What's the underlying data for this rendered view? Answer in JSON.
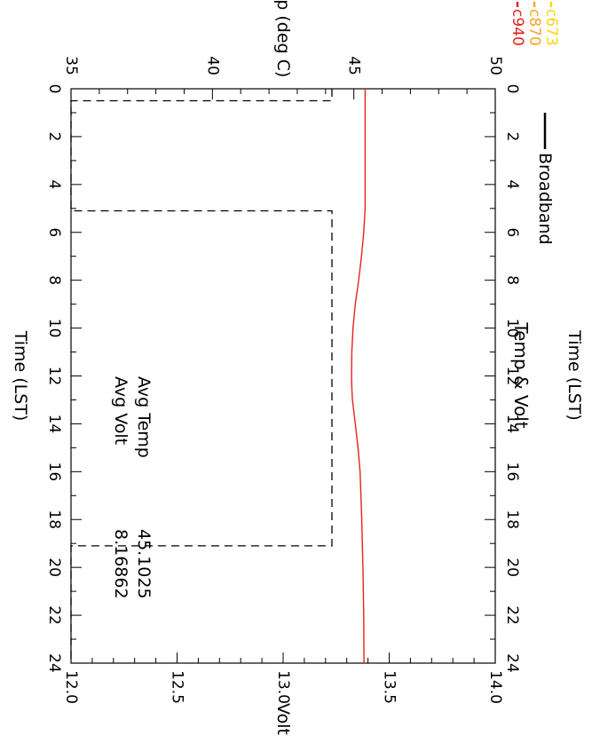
{
  "chart_data": {
    "type": "line",
    "title": "Time (LST)",
    "subtitle": "Temp & Volt",
    "xlabel": "Time (LST)",
    "x_range": [
      0,
      24
    ],
    "x_ticks": [
      0,
      2,
      4,
      6,
      8,
      10,
      12,
      14,
      16,
      18,
      20,
      22,
      24
    ],
    "y_left": {
      "label": "Temp (deg C)",
      "range": [
        35,
        50
      ],
      "ticks": [
        35,
        40,
        45,
        50
      ]
    },
    "y_right": {
      "label": "Volt",
      "range": [
        12.0,
        14.0
      ],
      "ticks": [
        "12.0",
        "12.5",
        "13.0",
        "13.5",
        "14.0"
      ]
    },
    "legend": {
      "placement": "top-right",
      "entries": [
        {
          "name": "c940",
          "color": "#e8211c"
        },
        {
          "name": "c870",
          "color": "#f5a623"
        },
        {
          "name": "c673",
          "color": "#f5d60f"
        },
        {
          "name": "Broadband",
          "color": "#000000"
        }
      ]
    },
    "annotations": [
      {
        "label": "Avg Temp",
        "value": "45.1025"
      },
      {
        "label": "Avg Volt",
        "value": "8.16862"
      }
    ],
    "series": [
      {
        "name": "Temp",
        "axis": "y_left",
        "color": "#e8211c",
        "style": "solid",
        "x": [
          0,
          2,
          4,
          5,
          6,
          7,
          8,
          9,
          10,
          11,
          12,
          12.5,
          13,
          14,
          15,
          16,
          18,
          20,
          22,
          24
        ],
        "y": [
          45.4,
          45.4,
          45.4,
          45.4,
          45.35,
          45.27,
          45.17,
          45.05,
          44.97,
          44.93,
          44.92,
          44.93,
          44.95,
          45.05,
          45.15,
          45.22,
          45.28,
          45.32,
          45.35,
          45.36
        ]
      },
      {
        "name": "Volt",
        "axis": "y_right",
        "color": "#000000",
        "style": "dashed",
        "x": [
          0,
          0.5,
          0.5,
          5.1,
          5.1,
          19.1,
          19.1,
          24
        ],
        "y": [
          13.23,
          13.23,
          12.0,
          12.0,
          13.23,
          13.23,
          12.0,
          12.0
        ]
      }
    ]
  }
}
